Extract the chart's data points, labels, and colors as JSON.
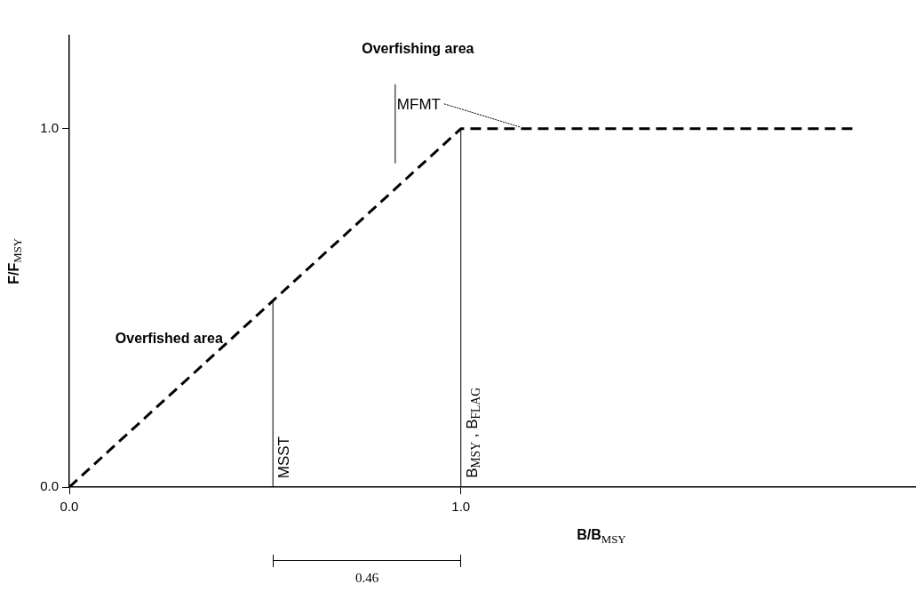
{
  "chart_data": {
    "type": "line",
    "xlabel": "B/B$_{MSY}$",
    "ylabel": "F/F$_{MSY}$",
    "xlim": [
      0,
      2.16
    ],
    "ylim": [
      0,
      1.26
    ],
    "xticks": [
      {
        "value": 0,
        "label": "0.0"
      },
      {
        "value": 1,
        "label": "1.0"
      }
    ],
    "yticks": [
      {
        "value": 0,
        "label": "0.0"
      },
      {
        "value": 1,
        "label": "1.0"
      }
    ],
    "legend": false,
    "marker": "none",
    "line_style": "dashed",
    "series": [
      {
        "color": "#000000",
        "x": [
          0,
          1,
          2
        ],
        "values": [
          0,
          1,
          1
        ]
      }
    ],
    "ref_lines": [
      {
        "axis": "x",
        "value": 0.52,
        "label": "MSST",
        "color": "#000000"
      },
      {
        "axis": "x",
        "value": 1,
        "label": "B$_{MSY}$ ,  B$_{FLAG}$",
        "color": "#000000"
      }
    ],
    "annotations": [
      "Overfishing area",
      "Overfished area",
      {
        "text": "MFMT",
        "x": 1.15,
        "y": 1
      },
      "0.46"
    ]
  }
}
